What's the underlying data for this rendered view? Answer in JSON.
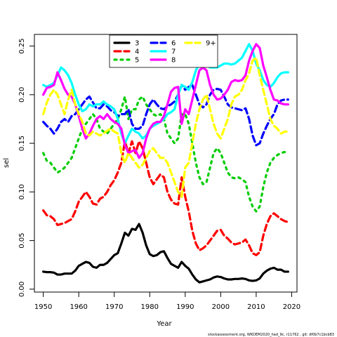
{
  "chart_data": {
    "type": "line",
    "xlabel": "Year",
    "ylabel": "sel",
    "xlim": [
      1947.5,
      2021.5
    ],
    "ylim": [
      -0.003,
      0.262
    ],
    "xticks": [
      1950,
      1960,
      1970,
      1980,
      1990,
      2000,
      2010,
      2020
    ],
    "yticks": [
      0.0,
      0.05,
      0.1,
      0.15,
      0.2,
      0.25
    ],
    "ytick_labels": [
      "0.00",
      "0.05",
      "0.10",
      "0.15",
      "0.20",
      "0.25"
    ],
    "legend_placement": "top-center",
    "grid": false,
    "footer": "stockassessment.org, WKDEM2020_had_9c, r11762 , git: df0b7c1bcb83",
    "x": [
      1950,
      1951,
      1952,
      1953,
      1954,
      1955,
      1956,
      1957,
      1958,
      1959,
      1960,
      1961,
      1962,
      1963,
      1964,
      1965,
      1966,
      1967,
      1968,
      1969,
      1970,
      1971,
      1972,
      1973,
      1974,
      1975,
      1976,
      1977,
      1978,
      1979,
      1980,
      1981,
      1982,
      1983,
      1984,
      1985,
      1986,
      1987,
      1988,
      1989,
      1990,
      1991,
      1992,
      1993,
      1994,
      1995,
      1996,
      1997,
      1998,
      1999,
      2000,
      2001,
      2002,
      2003,
      2004,
      2005,
      2006,
      2007,
      2008,
      2009,
      2010,
      2011,
      2012,
      2013,
      2014,
      2015,
      2016,
      2017,
      2018,
      2019
    ],
    "series": [
      {
        "name": "3",
        "color": "#000000",
        "dash": "solid",
        "values": [
          0.018,
          0.0175,
          0.0175,
          0.017,
          0.015,
          0.015,
          0.016,
          0.016,
          0.016,
          0.019,
          0.024,
          0.026,
          0.028,
          0.027,
          0.023,
          0.022,
          0.025,
          0.025,
          0.027,
          0.031,
          0.035,
          0.037,
          0.047,
          0.058,
          0.055,
          0.062,
          0.061,
          0.067,
          0.058,
          0.045,
          0.036,
          0.034,
          0.035,
          0.038,
          0.039,
          0.032,
          0.026,
          0.024,
          0.022,
          0.028,
          0.024,
          0.021,
          0.015,
          0.01,
          0.007,
          0.008,
          0.009,
          0.01,
          0.012,
          0.013,
          0.0125,
          0.011,
          0.01,
          0.01,
          0.0105,
          0.0105,
          0.011,
          0.0105,
          0.009,
          0.0085,
          0.009,
          0.011,
          0.016,
          0.019,
          0.021,
          0.022,
          0.02,
          0.02,
          0.018,
          0.018
        ]
      },
      {
        "name": "4",
        "color": "#ff0000",
        "dash": "dash",
        "values": [
          0.081,
          0.076,
          0.075,
          0.072,
          0.066,
          0.067,
          0.068,
          0.07,
          0.072,
          0.08,
          0.09,
          0.095,
          0.1,
          0.095,
          0.088,
          0.087,
          0.093,
          0.095,
          0.1,
          0.107,
          0.112,
          0.12,
          0.13,
          0.152,
          0.14,
          0.152,
          0.14,
          0.152,
          0.145,
          0.13,
          0.115,
          0.108,
          0.113,
          0.118,
          0.115,
          0.1,
          0.092,
          0.088,
          0.087,
          0.115,
          0.095,
          0.08,
          0.06,
          0.047,
          0.04,
          0.042,
          0.045,
          0.05,
          0.055,
          0.06,
          0.061,
          0.055,
          0.052,
          0.048,
          0.046,
          0.047,
          0.048,
          0.051,
          0.045,
          0.037,
          0.035,
          0.038,
          0.055,
          0.067,
          0.075,
          0.078,
          0.075,
          0.072,
          0.07,
          0.069
        ]
      },
      {
        "name": "5",
        "color": "#00cd00",
        "dash": "dot",
        "values": [
          0.14,
          0.132,
          0.13,
          0.125,
          0.12,
          0.122,
          0.125,
          0.13,
          0.135,
          0.145,
          0.155,
          0.165,
          0.17,
          0.175,
          0.18,
          0.175,
          0.165,
          0.162,
          0.16,
          0.165,
          0.17,
          0.175,
          0.185,
          0.198,
          0.175,
          0.185,
          0.185,
          0.195,
          0.198,
          0.19,
          0.185,
          0.18,
          0.178,
          0.18,
          0.175,
          0.16,
          0.155,
          0.15,
          0.155,
          0.18,
          0.18,
          0.17,
          0.15,
          0.13,
          0.115,
          0.108,
          0.11,
          0.125,
          0.14,
          0.145,
          0.14,
          0.13,
          0.12,
          0.115,
          0.114,
          0.115,
          0.113,
          0.11,
          0.095,
          0.085,
          0.08,
          0.085,
          0.105,
          0.12,
          0.13,
          0.135,
          0.138,
          0.14,
          0.141,
          0.141
        ]
      },
      {
        "name": "6",
        "color": "#0000ff",
        "dash": "dash",
        "values": [
          0.172,
          0.168,
          0.165,
          0.16,
          0.165,
          0.172,
          0.175,
          0.172,
          0.178,
          0.18,
          0.185,
          0.19,
          0.195,
          0.198,
          0.192,
          0.186,
          0.186,
          0.19,
          0.188,
          0.184,
          0.182,
          0.178,
          0.18,
          0.18,
          0.185,
          0.17,
          0.165,
          0.165,
          0.168,
          0.18,
          0.19,
          0.195,
          0.19,
          0.186,
          0.185,
          0.188,
          0.19,
          0.193,
          0.2,
          0.21,
          0.205,
          0.208,
          0.21,
          0.2,
          0.19,
          0.187,
          0.19,
          0.2,
          0.205,
          0.206,
          0.205,
          0.198,
          0.19,
          0.187,
          0.186,
          0.185,
          0.184,
          0.186,
          0.175,
          0.158,
          0.148,
          0.15,
          0.16,
          0.168,
          0.175,
          0.18,
          0.19,
          0.194,
          0.195,
          0.195
        ]
      },
      {
        "name": "7",
        "color": "#00ffff",
        "dash": "solid",
        "values": [
          0.21,
          0.208,
          0.21,
          0.212,
          0.22,
          0.228,
          0.225,
          0.22,
          0.212,
          0.2,
          0.19,
          0.183,
          0.185,
          0.19,
          0.188,
          0.19,
          0.19,
          0.193,
          0.19,
          0.188,
          0.185,
          0.175,
          0.16,
          0.15,
          0.158,
          0.165,
          0.162,
          0.16,
          0.155,
          0.158,
          0.165,
          0.168,
          0.17,
          0.172,
          0.175,
          0.18,
          0.182,
          0.185,
          0.2,
          0.21,
          0.208,
          0.205,
          0.213,
          0.225,
          0.232,
          0.232,
          0.23,
          0.228,
          0.228,
          0.228,
          0.23,
          0.232,
          0.232,
          0.231,
          0.232,
          0.235,
          0.238,
          0.245,
          0.252,
          0.245,
          0.232,
          0.225,
          0.215,
          0.21,
          0.208,
          0.212,
          0.218,
          0.222,
          0.223,
          0.223
        ]
      },
      {
        "name": "8",
        "color": "#ff00ff",
        "dash": "solid",
        "values": [
          0.2,
          0.207,
          0.208,
          0.21,
          0.223,
          0.215,
          0.206,
          0.2,
          0.198,
          0.19,
          0.178,
          0.165,
          0.155,
          0.16,
          0.168,
          0.175,
          0.178,
          0.175,
          0.18,
          0.175,
          0.172,
          0.17,
          0.165,
          0.148,
          0.14,
          0.142,
          0.143,
          0.135,
          0.14,
          0.155,
          0.165,
          0.17,
          0.172,
          0.172,
          0.178,
          0.19,
          0.203,
          0.207,
          0.208,
          0.17,
          0.185,
          0.18,
          0.195,
          0.21,
          0.225,
          0.228,
          0.225,
          0.21,
          0.2,
          0.195,
          0.196,
          0.2,
          0.205,
          0.213,
          0.215,
          0.214,
          0.215,
          0.22,
          0.235,
          0.245,
          0.252,
          0.248,
          0.23,
          0.218,
          0.205,
          0.195,
          0.194,
          0.191,
          0.19,
          0.19
        ]
      },
      {
        "name": "9+",
        "color": "#ffff00",
        "dash": "dash",
        "values": [
          0.18,
          0.192,
          0.2,
          0.205,
          0.2,
          0.19,
          0.18,
          0.195,
          0.205,
          0.19,
          0.18,
          0.172,
          0.16,
          0.158,
          0.162,
          0.16,
          0.158,
          0.16,
          0.163,
          0.165,
          0.162,
          0.16,
          0.14,
          0.13,
          0.14,
          0.135,
          0.13,
          0.125,
          0.128,
          0.135,
          0.142,
          0.145,
          0.14,
          0.135,
          0.135,
          0.13,
          0.12,
          0.11,
          0.1,
          0.095,
          0.125,
          0.13,
          0.15,
          0.17,
          0.185,
          0.195,
          0.2,
          0.185,
          0.17,
          0.16,
          0.155,
          0.165,
          0.175,
          0.19,
          0.198,
          0.2,
          0.205,
          0.215,
          0.222,
          0.235,
          0.238,
          0.22,
          0.205,
          0.19,
          0.175,
          0.168,
          0.165,
          0.16,
          0.162,
          0.162
        ]
      }
    ]
  }
}
